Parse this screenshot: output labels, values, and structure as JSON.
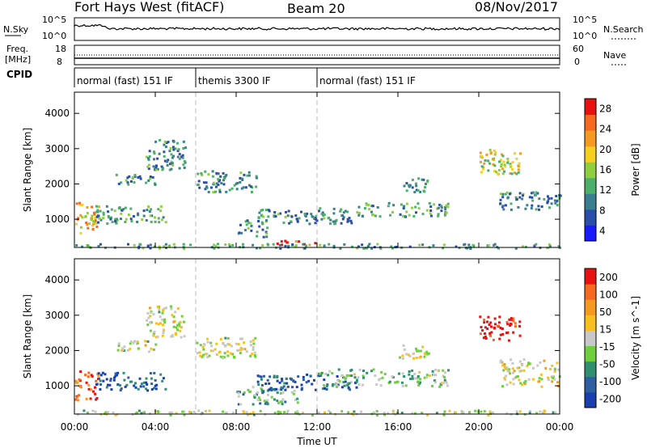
{
  "header": {
    "title": "Fort Hays West (fitACF)",
    "beam": "Beam 20",
    "date": "08/Nov/2017"
  },
  "noise_panel": {
    "left_label": "N.Sky",
    "right_label": "N.Search",
    "left_ticks": [
      "10^5",
      "10^0"
    ],
    "right_ticks": [
      "10^5",
      "10^0"
    ]
  },
  "freq_panel": {
    "left_label_1": "Freq.",
    "left_label_2": "[MHz]",
    "right_label": "Nave",
    "left_ticks": [
      "18",
      "8"
    ],
    "right_ticks": [
      "60",
      "0"
    ]
  },
  "cpid": {
    "label": "CPID",
    "segments": [
      {
        "name": "normal (fast) 151 IF",
        "start_h": 0,
        "end_h": 6
      },
      {
        "name": "themis 3300 IF",
        "start_h": 6,
        "end_h": 12
      },
      {
        "name": "normal (fast) 151 IF",
        "start_h": 12,
        "end_h": 24
      }
    ]
  },
  "colors": {
    "power_scale": [
      "#1a1aff",
      "#2a4faa",
      "#3a7f8f",
      "#4caf6a",
      "#8fcf3f",
      "#f5d020",
      "#f59a20",
      "#f56a20",
      "#e81010"
    ],
    "velocity_scale": [
      "#1a3fb0",
      "#2f5fa0",
      "#2f8f6f",
      "#6fcf3f",
      "#c8c8c8",
      "#f5c020",
      "#f59a20",
      "#f56a20",
      "#e81010"
    ]
  },
  "chart_data": [
    {
      "type": "heatmap",
      "title": "",
      "xlabel": "Time UT",
      "ylabel": "Slant Range [km]",
      "x_ticks": [
        "00:00",
        "04:00",
        "08:00",
        "12:00",
        "16:00",
        "20:00",
        "00:00"
      ],
      "y_ticks": [
        1000,
        2000,
        3000,
        4000
      ],
      "xlim_hours": [
        0,
        24
      ],
      "ylim_km": [
        200,
        4600
      ],
      "colorbar": {
        "label": "Power [dB]",
        "ticks": [
          "4",
          "8",
          "12",
          "16",
          "20",
          "24",
          "28"
        ],
        "range": [
          0,
          30
        ]
      },
      "regions": [
        {
          "t0": 0.0,
          "t1": 1.2,
          "r0": 600,
          "r1": 1500,
          "level": 0.7
        },
        {
          "t0": 1.0,
          "t1": 4.5,
          "r0": 900,
          "r1": 1400,
          "level": 0.35
        },
        {
          "t0": 2.0,
          "t1": 4.0,
          "r0": 2000,
          "r1": 2300,
          "level": 0.3
        },
        {
          "t0": 3.5,
          "t1": 5.5,
          "r0": 2400,
          "r1": 3300,
          "level": 0.3
        },
        {
          "t0": 6.0,
          "t1": 9.0,
          "r0": 1800,
          "r1": 2400,
          "level": 0.3
        },
        {
          "t0": 8.0,
          "t1": 9.5,
          "r0": 500,
          "r1": 1000,
          "level": 0.3
        },
        {
          "t0": 9.5,
          "t1": 12.0,
          "r0": 300,
          "r1": 420,
          "level": 0.9
        },
        {
          "t0": 9.0,
          "t1": 14.0,
          "r0": 900,
          "r1": 1350,
          "level": 0.3
        },
        {
          "t0": 14.0,
          "t1": 18.5,
          "r0": 1100,
          "r1": 1500,
          "level": 0.35
        },
        {
          "t0": 16.0,
          "t1": 17.5,
          "r0": 1800,
          "r1": 2200,
          "level": 0.3
        },
        {
          "t0": 20.0,
          "t1": 22.0,
          "r0": 2300,
          "r1": 3000,
          "level": 0.55
        },
        {
          "t0": 21.0,
          "t1": 24.0,
          "r0": 1300,
          "r1": 1800,
          "level": 0.3
        },
        {
          "t0": 0.0,
          "t1": 24.0,
          "r0": 200,
          "r1": 330,
          "level": 0.35
        }
      ]
    },
    {
      "type": "heatmap",
      "title": "",
      "xlabel": "Time UT",
      "ylabel": "Slant Range [km]",
      "x_ticks": [
        "00:00",
        "04:00",
        "08:00",
        "12:00",
        "16:00",
        "20:00",
        "00:00"
      ],
      "y_ticks": [
        1000,
        2000,
        3000,
        4000
      ],
      "xlim_hours": [
        0,
        24
      ],
      "ylim_km": [
        200,
        4600
      ],
      "colorbar": {
        "label": "Velocity [m s^-1]",
        "ticks": [
          "200",
          "100",
          "50",
          "15",
          "-15",
          "-50",
          "-100",
          "-200"
        ],
        "range": [
          -250,
          250
        ]
      },
      "regions": [
        {
          "t0": 0.0,
          "t1": 1.2,
          "r0": 600,
          "r1": 1500,
          "level": 0.85
        },
        {
          "t0": 1.0,
          "t1": 4.5,
          "r0": 900,
          "r1": 1400,
          "level": 0.15
        },
        {
          "t0": 2.0,
          "t1": 4.0,
          "r0": 2000,
          "r1": 2300,
          "level": 0.5
        },
        {
          "t0": 3.5,
          "t1": 5.5,
          "r0": 2400,
          "r1": 3300,
          "level": 0.5
        },
        {
          "t0": 6.0,
          "t1": 9.0,
          "r0": 1800,
          "r1": 2400,
          "level": 0.5
        },
        {
          "t0": 8.0,
          "t1": 11.0,
          "r0": 500,
          "r1": 1000,
          "level": 0.35
        },
        {
          "t0": 9.0,
          "t1": 14.0,
          "r0": 900,
          "r1": 1350,
          "level": 0.12
        },
        {
          "t0": 12.0,
          "t1": 18.5,
          "r0": 1000,
          "r1": 1500,
          "level": 0.4
        },
        {
          "t0": 16.0,
          "t1": 17.5,
          "r0": 1800,
          "r1": 2200,
          "level": 0.5
        },
        {
          "t0": 20.0,
          "t1": 22.0,
          "r0": 2300,
          "r1": 3000,
          "level": 0.95
        },
        {
          "t0": 21.0,
          "t1": 24.0,
          "r0": 1000,
          "r1": 1800,
          "level": 0.55
        },
        {
          "t0": 0.0,
          "t1": 24.0,
          "r0": 200,
          "r1": 330,
          "level": 0.45
        }
      ]
    }
  ]
}
